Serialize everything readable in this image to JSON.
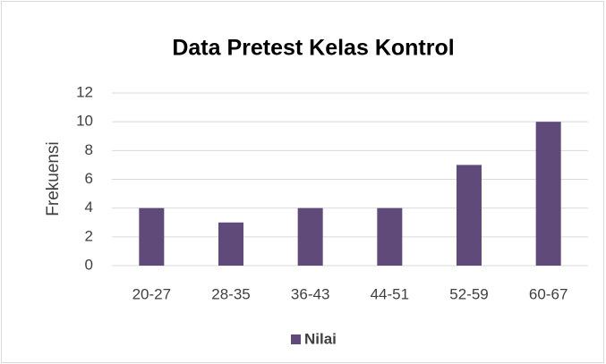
{
  "chart_data": {
    "type": "bar",
    "title": "Data Pretest Kelas Kontrol",
    "y_label": "Frekuensi",
    "categories": [
      "20-27",
      "28-35",
      "36-43",
      "44-51",
      "52-59",
      "60-67"
    ],
    "series": [
      {
        "name": "Nilai",
        "color": "#5f4a7a",
        "values": [
          4,
          3,
          4,
          4,
          7,
          10
        ]
      }
    ],
    "ylim": [
      0,
      12
    ],
    "yticks": [
      0,
      2,
      4,
      6,
      8,
      10,
      12
    ],
    "grid": true,
    "legend": "bottom"
  }
}
